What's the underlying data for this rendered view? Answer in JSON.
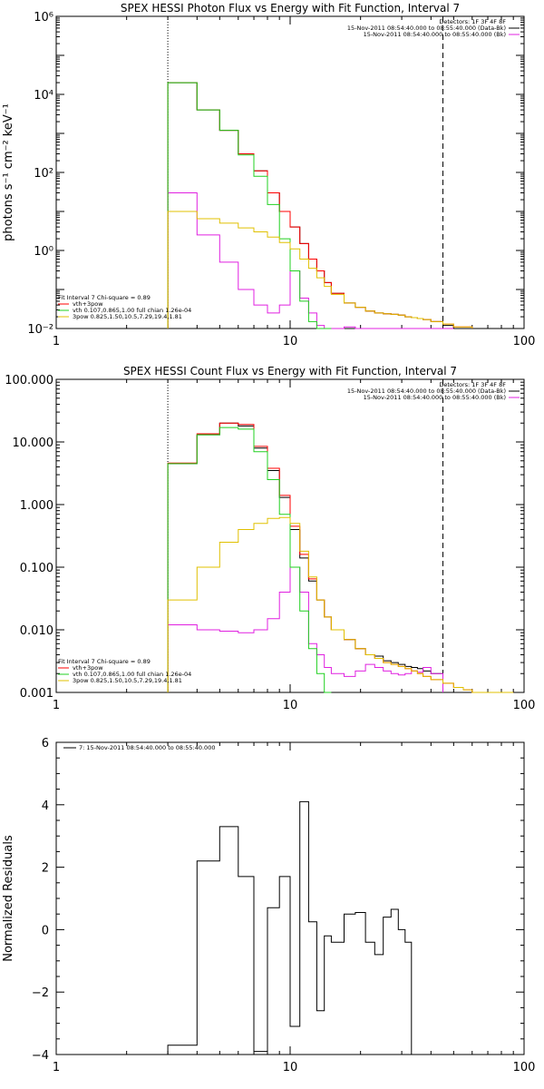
{
  "chart_data": [
    {
      "type": "line",
      "title": "SPEX HESSI Photon Flux vs Energy with Fit Function, Interval 7",
      "ylabel": "photons s⁻¹ cm⁻² keV⁻¹",
      "xlabel": "",
      "xscale": "log",
      "yscale": "log",
      "xlim": [
        1,
        100
      ],
      "ylim": [
        0.01,
        1000000
      ],
      "x_ticks": [
        "1",
        "10",
        "100"
      ],
      "y_ticks": [
        "10⁻²",
        "10⁰",
        "10²",
        "10⁴",
        "10⁶"
      ],
      "vlines": [
        {
          "x": 3,
          "style": "dotted"
        },
        {
          "x": 45,
          "style": "dashed"
        }
      ],
      "legend_top": [
        "Detectors: 1F 3F 4F 8F",
        "15-Nov-2011 08:54:40.000 to 08:55:40.000 (Data-Bk)",
        "15-Nov-2011 08:54:40.000 to 08:55:40.000 (Bk)"
      ],
      "legend_bottom": [
        "Fit Interval 7   Chi-square = 0.89",
        "vth+3pow",
        "vth 0.107,0.865,1.00  full chian 1.26e-04",
        "3pow 0.825,1.50,10.5,7.29,19.4,1.81"
      ],
      "edges": [
        3,
        4,
        5,
        6,
        7,
        8,
        9,
        10,
        11,
        12,
        13,
        14,
        15,
        17,
        19,
        21,
        23,
        25,
        27,
        29,
        31,
        33,
        35,
        37,
        40,
        45,
        50,
        60
      ],
      "series": [
        {
          "name": "15-Nov-2011 08:54:40.000 to 08:55:40.000 (Data-Bk)",
          "color": "#000000",
          "values": [
            20000,
            4000,
            1200,
            300,
            110,
            30,
            10,
            4,
            1.5,
            0.6,
            0.3,
            0.15,
            0.08,
            0.045,
            0.035,
            0.028,
            0.025,
            0.024,
            0.023,
            0.022,
            0.02,
            0.019,
            0.018,
            0.017,
            0.015,
            0.012
          ]
        },
        {
          "name": "15-Nov-2011 08:54:40.000 to 08:55:40.000 (Bk)",
          "color": "#e020e0",
          "values": [
            30,
            2.5,
            0.5,
            0.1,
            0.04,
            0.025,
            0.04,
            0.3,
            0.06,
            0.025,
            0.012,
            0.009,
            0.009,
            0.011,
            0.009,
            0.009,
            0.01,
            0.009,
            0.009,
            0.009,
            0.009,
            0.009,
            0.009,
            0.009,
            0.009,
            0.009
          ]
        },
        {
          "name": "vth+3pow",
          "color": "#ff0000",
          "values": [
            20000,
            4000,
            1200,
            300,
            110,
            30,
            10,
            4,
            1.5,
            0.6,
            0.3,
            0.15,
            0.08,
            0.045,
            0.035,
            0.028,
            0.025,
            0.024,
            0.023,
            0.022,
            0.02,
            0.019,
            0.018,
            0.017,
            0.015,
            0.013,
            0.011
          ]
        },
        {
          "name": "vth 0.107,0.865,1.00  full chian 1.26e-04",
          "color": "#20d020",
          "values": [
            20000,
            4000,
            1200,
            280,
            80,
            15,
            2,
            0.3,
            0.05,
            0.015,
            0.008,
            0.006
          ]
        },
        {
          "name": "3pow 0.825,1.50,10.5,7.29,19.4,1.81",
          "color": "#e0c000",
          "values": [
            10,
            6.5,
            5,
            3.8,
            3,
            2.2,
            1.6,
            1.1,
            0.6,
            0.35,
            0.2,
            0.12,
            0.075,
            0.045,
            0.035,
            0.028,
            0.025,
            0.024,
            0.023,
            0.022,
            0.02,
            0.019,
            0.018,
            0.017,
            0.015,
            0.013,
            0.011
          ]
        }
      ]
    },
    {
      "type": "line",
      "title": "SPEX HESSI Count Flux vs Energy with Fit Function, Interval 7",
      "xlabel": "",
      "ylabel": "",
      "xscale": "log",
      "yscale": "log",
      "xlim": [
        1,
        100
      ],
      "ylim": [
        0.001,
        100
      ],
      "x_ticks": [
        "1",
        "10",
        "100"
      ],
      "y_ticks": [
        "0.001",
        "0.010",
        "0.100",
        "1.000",
        "10.000",
        "100.000"
      ],
      "vlines": [
        {
          "x": 3,
          "style": "dotted"
        },
        {
          "x": 45,
          "style": "dashed"
        }
      ],
      "legend_top": [
        "Detectors: 1F 3F 4F 8F",
        "15-Nov-2011 08:54:40.000 to 08:55:40.000 (Data-Bk)",
        "15-Nov-2011 08:54:40.000 to 08:55:40.000 (Bk)"
      ],
      "legend_bottom": [
        "Fit Interval 7   Chi-square = 0.89",
        "vth+3pow",
        "vth 0.107,0.865,1.00  full chian 1.26e-04",
        "3pow 0.825,1.50,10.5,7.29,19.4,1.81"
      ],
      "edges": [
        3,
        4,
        5,
        6,
        7,
        8,
        9,
        10,
        11,
        12,
        13,
        14,
        15,
        17,
        19,
        21,
        23,
        25,
        27,
        29,
        31,
        33,
        35,
        37,
        40,
        45,
        50,
        55,
        60,
        70,
        80,
        90
      ],
      "series": [
        {
          "name": "15-Nov-2011 08:54:40.000 to 08:55:40.000 (Data-Bk)",
          "color": "#000000",
          "values": [
            4.5,
            13,
            20,
            18,
            8,
            3.5,
            1.3,
            0.4,
            0.14,
            0.06,
            0.03,
            0.016,
            0.01,
            0.007,
            0.005,
            0.004,
            0.0038,
            0.0032,
            0.003,
            0.0028,
            0.0026,
            0.0025,
            0.0024,
            0.0022,
            0.002
          ]
        },
        {
          "name": "15-Nov-2011 08:54:40.000 to 08:55:40.000 (Bk)",
          "color": "#e020e0",
          "values": [
            0.012,
            0.01,
            0.0095,
            0.009,
            0.01,
            0.015,
            0.04,
            0.1,
            0.04,
            0.006,
            0.004,
            0.0025,
            0.002,
            0.0018,
            0.0022,
            0.0028,
            0.0025,
            0.0022,
            0.002,
            0.0019,
            0.002,
            0.0022,
            0.0021,
            0.0025,
            0.002
          ]
        },
        {
          "name": "vth+3pow",
          "color": "#ff0000",
          "values": [
            4.6,
            13.5,
            20,
            19,
            8.5,
            3.8,
            1.4,
            0.45,
            0.16,
            0.065,
            0.03,
            0.016,
            0.01,
            0.007,
            0.005,
            0.004,
            0.0035,
            0.003,
            0.0028,
            0.0026,
            0.0024,
            0.0022,
            0.002,
            0.0018,
            0.0016,
            0.0014,
            0.0012,
            0.0011,
            0.001,
            0.0009,
            0.0008
          ]
        },
        {
          "name": "vth 0.107,0.865,1.00  full chian 1.26e-04",
          "color": "#20d020",
          "values": [
            4.5,
            13,
            17,
            16,
            7,
            2.5,
            0.7,
            0.1,
            0.02,
            0.005,
            0.002,
            0.0009
          ]
        },
        {
          "name": "3pow 0.825,1.50,10.5,7.29,19.4,1.81",
          "color": "#e0c000",
          "values": [
            0.03,
            0.1,
            0.25,
            0.4,
            0.5,
            0.6,
            0.62,
            0.5,
            0.18,
            0.07,
            0.03,
            0.016,
            0.01,
            0.007,
            0.005,
            0.004,
            0.0035,
            0.003,
            0.0028,
            0.0026,
            0.0024,
            0.0022,
            0.002,
            0.0018,
            0.0016,
            0.0014,
            0.0012,
            0.0011,
            0.001,
            0.0009,
            0.0008
          ]
        }
      ]
    },
    {
      "type": "line",
      "title": "",
      "xlabel": "",
      "ylabel": "Normalized Residuals",
      "xscale": "log",
      "yscale": "linear",
      "xlim": [
        1,
        100
      ],
      "ylim": [
        -4,
        6
      ],
      "x_ticks": [
        "1",
        "10",
        "100"
      ],
      "y_ticks": [
        "−4",
        "−2",
        "0",
        "2",
        "4",
        "6"
      ],
      "legend_top": [
        "7: 15-Nov-2011 08:54:40.000 to 08:55:40.000"
      ],
      "edges": [
        3,
        4,
        5,
        6,
        7,
        8,
        9,
        10,
        11,
        12,
        13,
        14,
        15,
        17,
        19,
        21,
        23,
        25,
        27,
        29,
        31,
        33,
        35,
        37,
        40,
        45
      ],
      "series": [
        {
          "name": "7: 15-Nov-2011 08:54:40.000 to 08:55:40.000",
          "color": "#000000",
          "values": [
            -3.7,
            2.2,
            3.3,
            1.7,
            -3.9,
            0.7,
            1.7,
            -3.1,
            4.1,
            0.25,
            -2.6,
            -0.2,
            -0.4,
            0.5,
            0.55,
            -0.4,
            -0.8,
            0.4,
            0.65,
            0,
            -0.4
          ]
        }
      ]
    }
  ]
}
